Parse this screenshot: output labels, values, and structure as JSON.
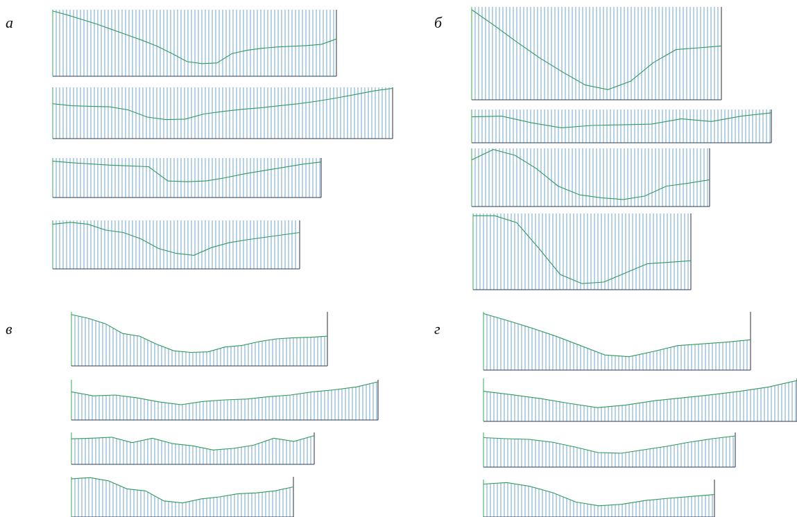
{
  "panels": [
    {
      "label": "а",
      "profiles": [
        {
          "y": [
            0.02,
            0.08,
            0.15,
            0.22,
            0.3,
            0.38,
            0.46,
            0.55,
            0.66,
            0.78,
            0.81,
            0.8,
            0.66,
            0.61,
            0.58,
            0.56,
            0.55,
            0.54,
            0.52,
            0.44
          ]
        },
        {
          "y": [
            0.32,
            0.36,
            0.37,
            0.38,
            0.44,
            0.58,
            0.63,
            0.62,
            0.52,
            0.47,
            0.43,
            0.4,
            0.36,
            0.32,
            0.27,
            0.21,
            0.14,
            0.07,
            0.02
          ]
        },
        {
          "y": [
            0.08,
            0.12,
            0.15,
            0.18,
            0.2,
            0.22,
            0.58,
            0.6,
            0.58,
            0.5,
            0.4,
            0.32,
            0.24,
            0.16,
            0.1
          ]
        },
        {
          "y": [
            0.08,
            0.04,
            0.08,
            0.2,
            0.25,
            0.38,
            0.58,
            0.68,
            0.72,
            0.56,
            0.46,
            0.4,
            0.35,
            0.3,
            0.25
          ]
        }
      ]
    },
    {
      "label": "б",
      "profiles": [
        {
          "y": [
            0.03,
            0.2,
            0.38,
            0.55,
            0.7,
            0.84,
            0.89,
            0.8,
            0.6,
            0.46,
            0.44,
            0.42
          ]
        },
        {
          "y": [
            0.22,
            0.2,
            0.4,
            0.55,
            0.48,
            0.46,
            0.44,
            0.28,
            0.36,
            0.2,
            0.1
          ]
        },
        {
          "y": [
            0.2,
            0.02,
            0.12,
            0.35,
            0.65,
            0.8,
            0.85,
            0.88,
            0.82,
            0.65,
            0.6,
            0.54
          ]
        },
        {
          "y": [
            0.03,
            0.03,
            0.12,
            0.45,
            0.8,
            0.92,
            0.9,
            0.78,
            0.66,
            0.64,
            0.62
          ]
        }
      ]
    },
    {
      "label": "в",
      "profiles": [
        {
          "y": [
            0.05,
            0.12,
            0.22,
            0.4,
            0.45,
            0.6,
            0.72,
            0.75,
            0.74,
            0.65,
            0.62,
            0.55,
            0.5,
            0.48,
            0.47,
            0.45
          ]
        },
        {
          "y": [
            0.3,
            0.4,
            0.38,
            0.45,
            0.55,
            0.62,
            0.54,
            0.5,
            0.48,
            0.42,
            0.38,
            0.3,
            0.25,
            0.18,
            0.05
          ]
        },
        {
          "y": [
            0.2,
            0.18,
            0.15,
            0.32,
            0.18,
            0.35,
            0.42,
            0.55,
            0.5,
            0.4,
            0.18,
            0.28,
            0.1
          ]
        },
        {
          "y": [
            0.05,
            0.02,
            0.1,
            0.3,
            0.35,
            0.6,
            0.65,
            0.55,
            0.5,
            0.42,
            0.4,
            0.35,
            0.25
          ]
        }
      ]
    },
    {
      "label": "г",
      "profiles": [
        {
          "y": [
            0.03,
            0.15,
            0.28,
            0.42,
            0.58,
            0.74,
            0.77,
            0.68,
            0.58,
            0.55,
            0.52,
            0.48
          ]
        },
        {
          "y": [
            0.3,
            0.38,
            0.47,
            0.58,
            0.68,
            0.62,
            0.52,
            0.45,
            0.38,
            0.3,
            0.2,
            0.05
          ]
        },
        {
          "y": [
            0.15,
            0.18,
            0.2,
            0.28,
            0.42,
            0.58,
            0.6,
            0.5,
            0.4,
            0.28,
            0.18,
            0.1
          ]
        },
        {
          "y": [
            0.12,
            0.08,
            0.18,
            0.35,
            0.6,
            0.7,
            0.66,
            0.56,
            0.5,
            0.45,
            0.4
          ]
        }
      ]
    }
  ],
  "colors": {
    "hatch": "#4a8fc8",
    "profile": "#2f9a55",
    "edge_left": "#2fae55",
    "edge_right": "#2a2a3a",
    "baseline": "#2a3a5a"
  }
}
